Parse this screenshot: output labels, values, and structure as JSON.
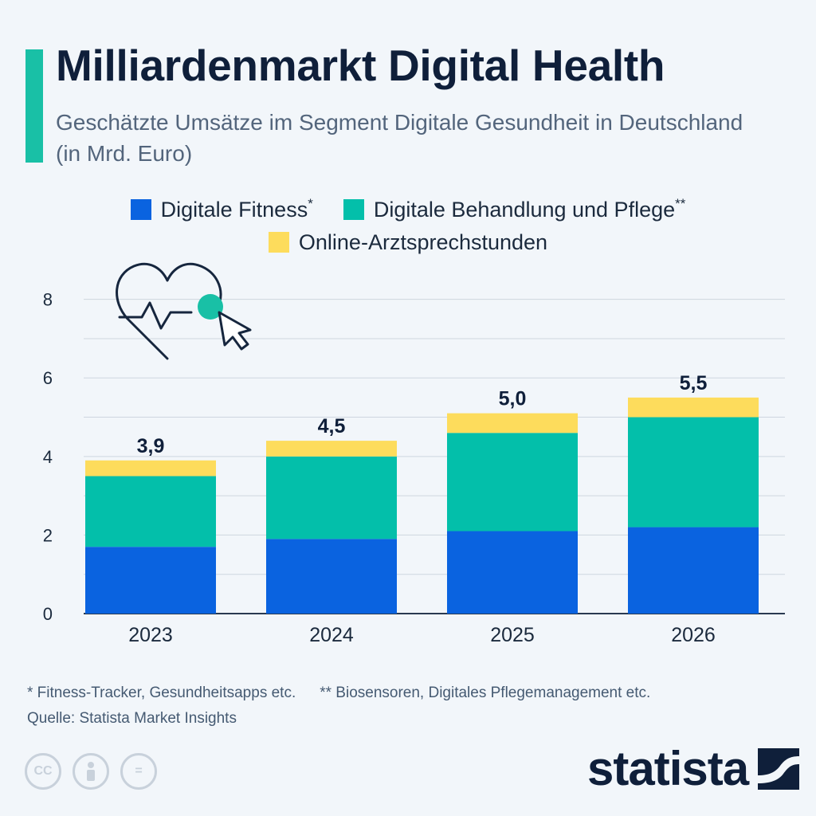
{
  "header": {
    "title": "Milliardenmarkt Digital Health",
    "subtitle": "Geschätzte Umsätze im Segment Digitale Gesundheit in Deutschland (in Mrd. Euro)"
  },
  "legend": {
    "fitness_label": "Digitale Fitness",
    "fitness_mark": "*",
    "behandlung_label": "Digitale Behandlung und Pflege",
    "behandlung_mark": "**",
    "arzt_label": "Online-Arztsprechstunden"
  },
  "colors": {
    "fitness": "#0a63e0",
    "behandlung": "#03bfaa",
    "arzt": "#fddc5c",
    "accent": "#19c0a6",
    "title": "#0f1f3a",
    "grid": "#ced6df"
  },
  "chart_data": {
    "type": "bar",
    "stacked": true,
    "categories": [
      "2023",
      "2024",
      "2025",
      "2026"
    ],
    "series": [
      {
        "name": "Digitale Fitness",
        "values": [
          1.7,
          1.9,
          2.1,
          2.2
        ]
      },
      {
        "name": "Digitale Behandlung und Pflege",
        "values": [
          1.8,
          2.1,
          2.5,
          2.8
        ]
      },
      {
        "name": "Online-Arztsprechstunden",
        "values": [
          0.4,
          0.4,
          0.5,
          0.5
        ]
      }
    ],
    "totals": [
      "3,9",
      "4,5",
      "5,0",
      "5,5"
    ],
    "yticks": [
      "0",
      "2",
      "4",
      "6",
      "8"
    ],
    "ylim": [
      0,
      8.5
    ],
    "grid": true,
    "legend_position": "top-center"
  },
  "footnotes": {
    "note1": "* Fitness-Tracker, Gesundheitsapps etc.",
    "note2": "** Biosensoren, Digitales Pflegemanagement etc.",
    "source": "Quelle: Statista Market Insights"
  },
  "icons": {
    "cc": "CC",
    "by": "attribution-icon",
    "nd": "=",
    "illustration": "heart-pulse-cursor-icon"
  },
  "brand": {
    "name": "statista"
  }
}
